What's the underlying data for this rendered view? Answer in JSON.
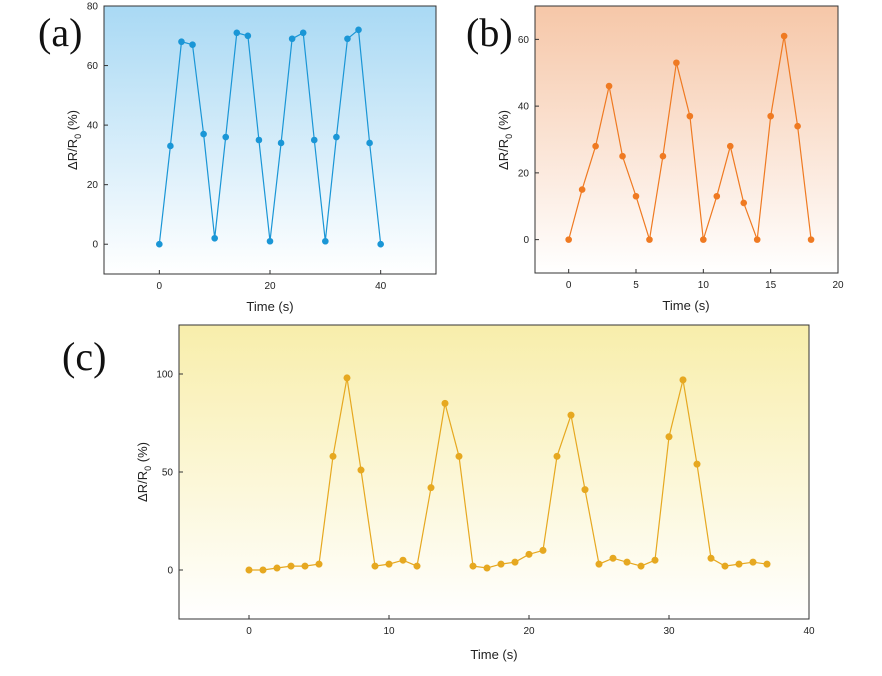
{
  "panels": {
    "a": {
      "label": "(a)"
    },
    "b": {
      "label": "(b)"
    },
    "c": {
      "label": "(c)"
    }
  },
  "colors": {
    "a_line": "#1a96d6",
    "b_line": "#ef7a22",
    "c_line": "#e6a820",
    "a_bg_top": "#a9d9f4",
    "b_bg_top": "#f6c7a8",
    "c_bg_top": "#f8eeab"
  },
  "chart_data": [
    {
      "id": "a",
      "type": "line",
      "xlabel": "Time (s)",
      "ylabel_main": "ΔR/R",
      "ylabel_sub": "0",
      "ylabel_tail": " (%)",
      "xlim": [
        -10,
        50
      ],
      "ylim": [
        -10,
        80
      ],
      "xticks": [
        0,
        20,
        40
      ],
      "yticks": [
        0,
        20,
        40,
        60,
        80
      ],
      "series": [
        {
          "name": "a",
          "x": [
            0,
            2,
            4,
            6,
            8,
            10,
            12,
            14,
            16,
            18,
            20,
            22,
            24,
            26,
            28,
            30,
            32,
            34,
            36,
            38,
            40
          ],
          "values": [
            0,
            33,
            68,
            67,
            37,
            2,
            36,
            71,
            70,
            35,
            1,
            34,
            69,
            71,
            35,
            1,
            36,
            69,
            72,
            34,
            0
          ]
        }
      ]
    },
    {
      "id": "b",
      "type": "line",
      "xlabel": "Time (s)",
      "ylabel_main": "ΔR/R",
      "ylabel_sub": "0",
      "ylabel_tail": " (%)",
      "xlim": [
        -2.5,
        20
      ],
      "ylim": [
        -10,
        70
      ],
      "xticks": [
        0,
        5,
        10,
        15,
        20
      ],
      "yticks": [
        0,
        20,
        40,
        60
      ],
      "series": [
        {
          "name": "b",
          "x": [
            0,
            1,
            2,
            3,
            4,
            5,
            6,
            7,
            8,
            9,
            10,
            11,
            12,
            13,
            14,
            15,
            16,
            17,
            18
          ],
          "values": [
            0,
            15,
            28,
            46,
            25,
            13,
            0,
            25,
            53,
            37,
            0,
            13,
            28,
            11,
            0,
            37,
            61,
            34,
            0
          ]
        }
      ]
    },
    {
      "id": "c",
      "type": "line",
      "xlabel": "Time (s)",
      "ylabel_main": "ΔR/R",
      "ylabel_sub": "0",
      "ylabel_tail": " (%)",
      "xlim": [
        -5,
        40
      ],
      "ylim": [
        -25,
        125
      ],
      "xticks": [
        0,
        10,
        20,
        30,
        40
      ],
      "yticks": [
        0,
        50,
        100
      ],
      "series": [
        {
          "name": "c",
          "x": [
            0,
            1,
            2,
            3,
            4,
            5,
            6,
            7,
            8,
            9,
            10,
            11,
            12,
            13,
            14,
            15,
            16,
            17,
            18,
            19,
            20,
            21,
            22,
            23,
            24,
            25,
            26,
            27,
            28,
            29,
            30,
            31,
            32,
            33,
            34,
            35,
            36,
            37
          ],
          "values": [
            0,
            0,
            1,
            2,
            2,
            3,
            58,
            98,
            51,
            2,
            3,
            5,
            2,
            42,
            85,
            58,
            2,
            1,
            3,
            4,
            8,
            10,
            58,
            79,
            41,
            3,
            6,
            4,
            2,
            5,
            68,
            97,
            54,
            6,
            2,
            3,
            4,
            3
          ]
        }
      ]
    }
  ]
}
